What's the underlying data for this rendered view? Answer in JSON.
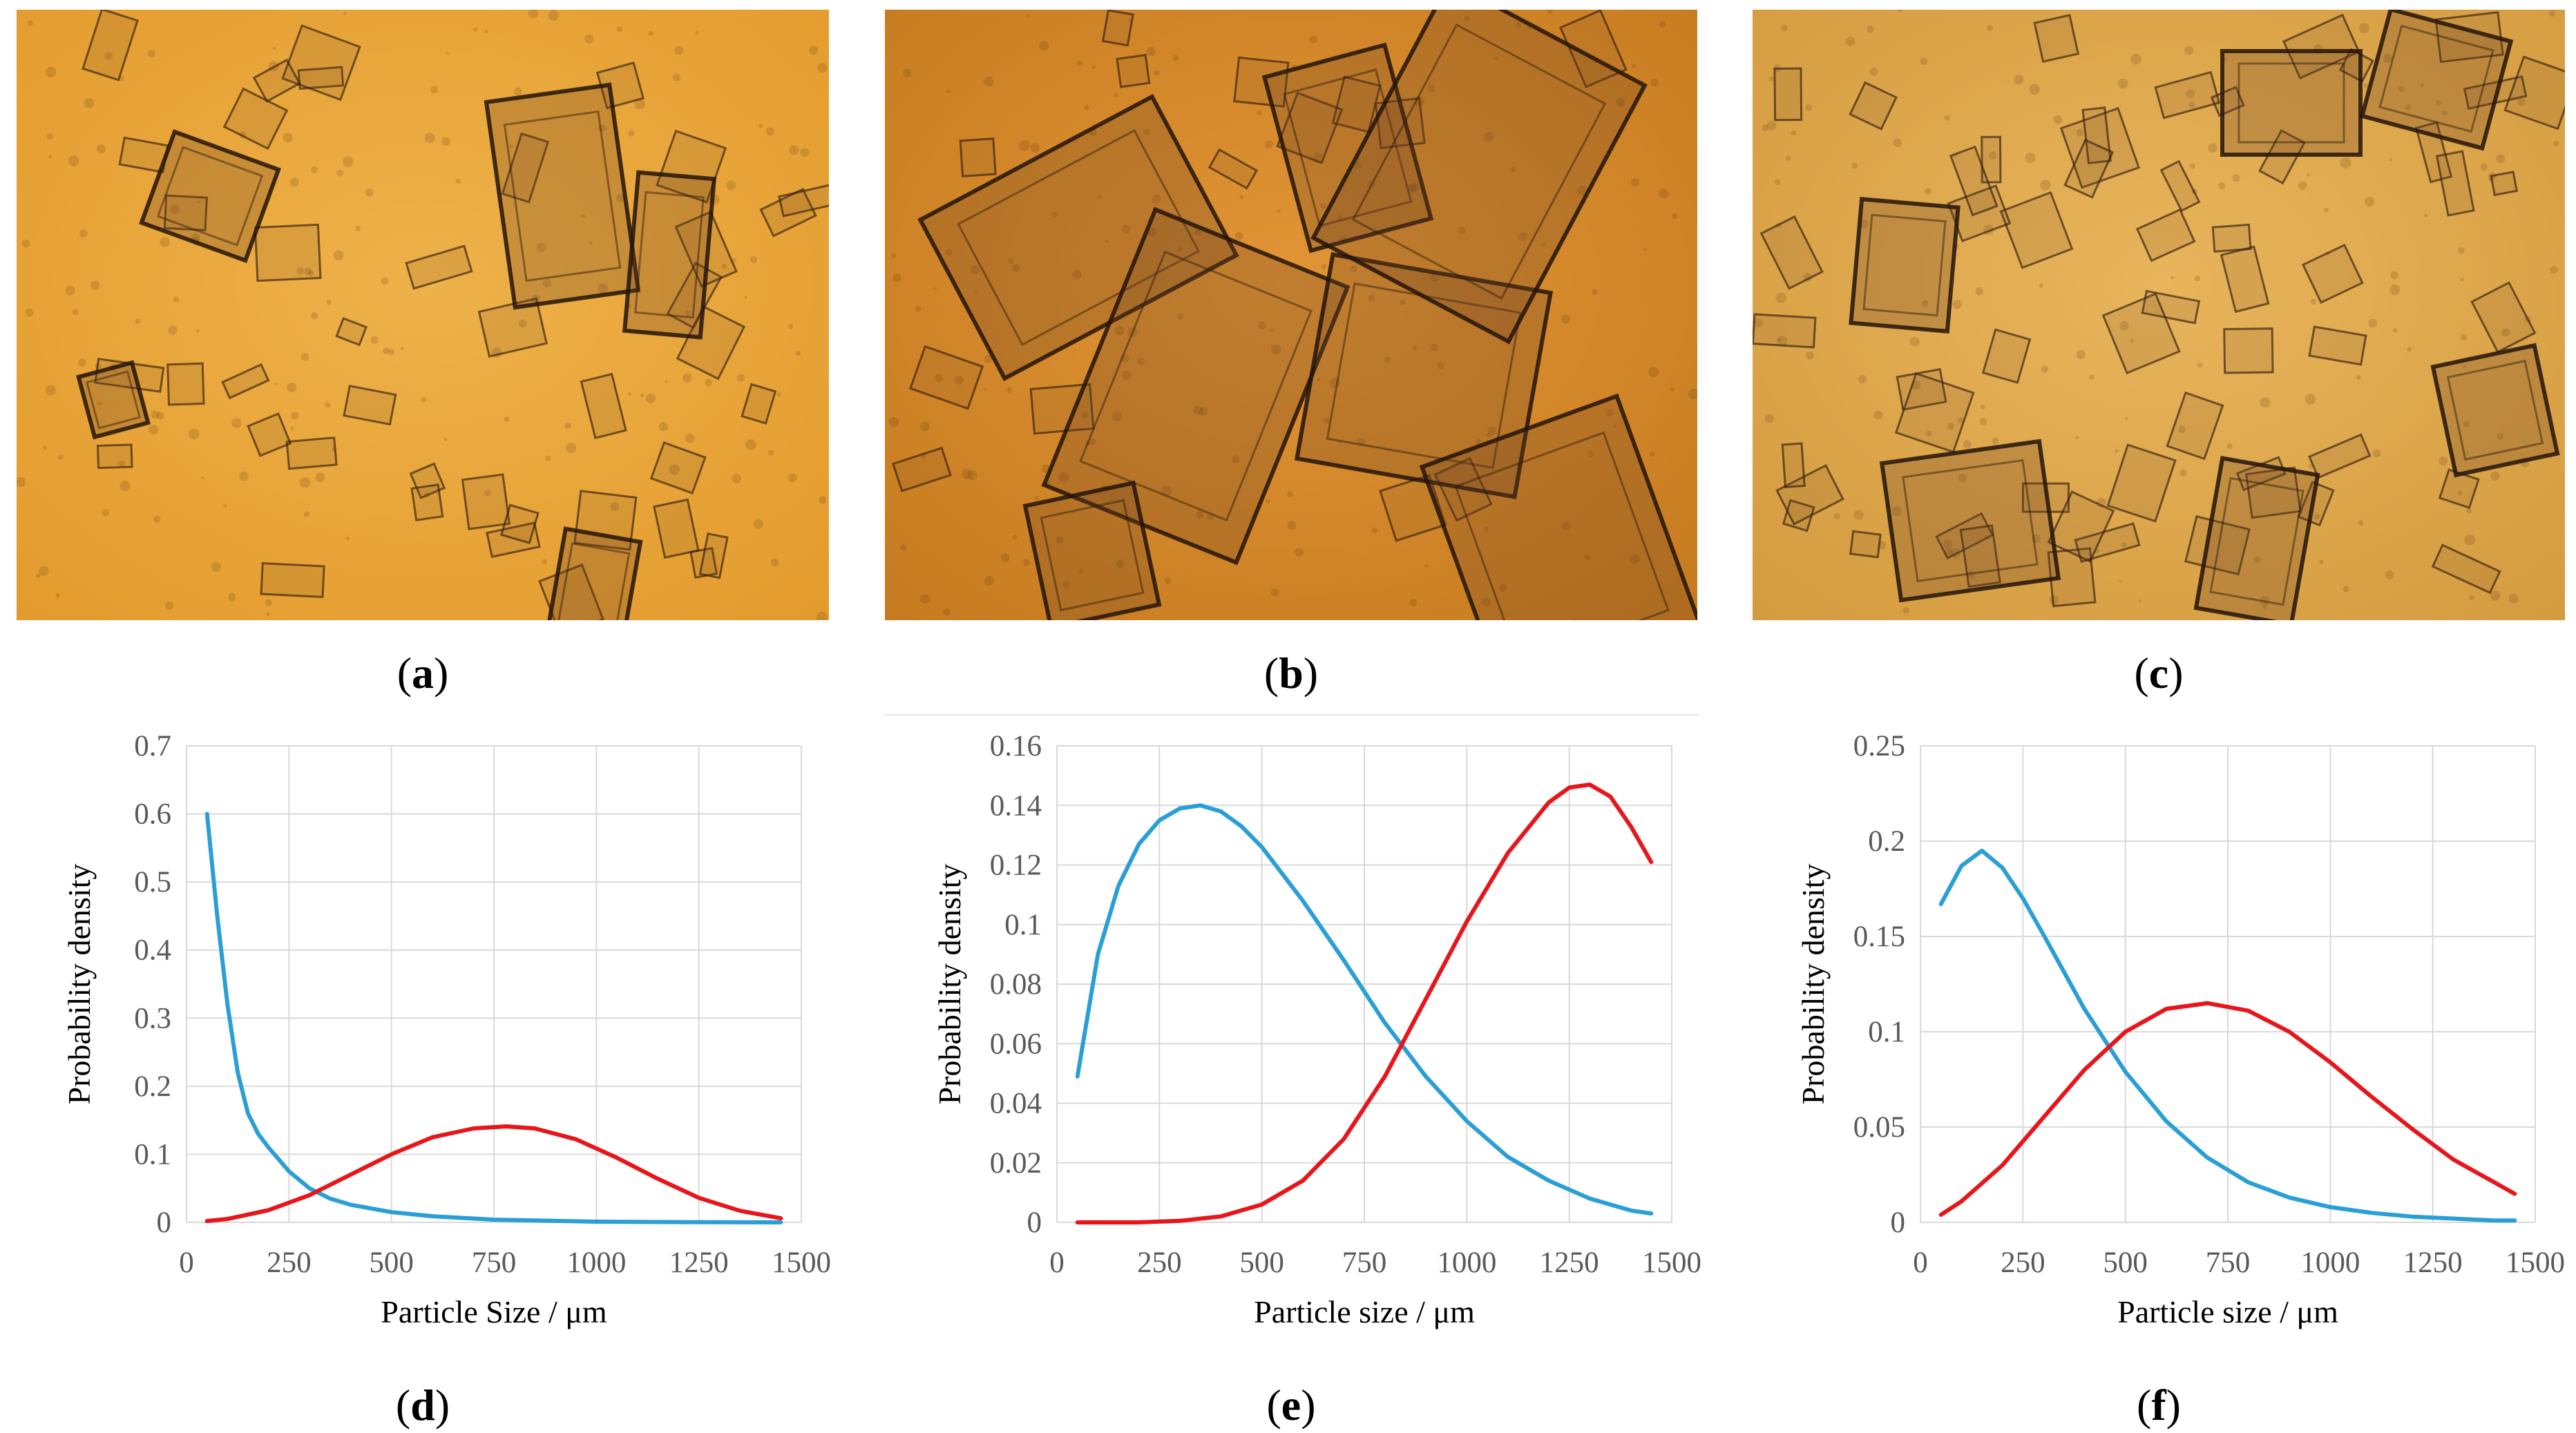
{
  "panels": [
    {
      "label": "a",
      "color_base": "#e39a2c",
      "color_light": "#eeb24a"
    },
    {
      "label": "b",
      "color_base": "#c57a1f",
      "color_light": "#e19535"
    },
    {
      "label": "c",
      "color_base": "#d49a3e",
      "color_light": "#e8b55c"
    }
  ],
  "chart_data": [
    {
      "type": "line",
      "panel": "d",
      "xlabel": "Particle Size / μm",
      "ylabel": "Probability density",
      "xlim": [
        0,
        1500
      ],
      "ylim": [
        0,
        0.7
      ],
      "xticks": [
        0,
        250,
        500,
        750,
        1000,
        1250,
        1500
      ],
      "yticks": [
        0,
        0.1,
        0.2,
        0.3,
        0.4,
        0.5,
        0.6,
        0.7
      ],
      "ytick_labels": [
        "0",
        "0.1",
        "0.2",
        "0.3",
        "0.4",
        "0.5",
        "0.6",
        "0.7"
      ],
      "grid": true,
      "series": [
        {
          "color": "#2a9fd6",
          "x": [
            50,
            75,
            100,
            125,
            150,
            175,
            200,
            250,
            300,
            350,
            400,
            500,
            600,
            750,
            1000,
            1250,
            1450
          ],
          "y": [
            0.6,
            0.45,
            0.32,
            0.22,
            0.16,
            0.13,
            0.11,
            0.075,
            0.05,
            0.035,
            0.026,
            0.015,
            0.009,
            0.004,
            0.001,
            0.0002,
            0
          ]
        },
        {
          "color": "#e8151b",
          "x": [
            50,
            100,
            200,
            300,
            400,
            500,
            600,
            700,
            780,
            850,
            950,
            1050,
            1150,
            1250,
            1350,
            1450
          ],
          "y": [
            0.002,
            0.005,
            0.018,
            0.04,
            0.07,
            0.1,
            0.125,
            0.138,
            0.141,
            0.138,
            0.122,
            0.095,
            0.064,
            0.036,
            0.017,
            0.006
          ]
        }
      ]
    },
    {
      "type": "line",
      "panel": "e",
      "xlabel": "Particle size / μm",
      "ylabel": "Probability density",
      "xlim": [
        0,
        1500
      ],
      "ylim": [
        0,
        0.16
      ],
      "xticks": [
        0,
        250,
        500,
        750,
        1000,
        1250,
        1500
      ],
      "yticks": [
        0,
        0.02,
        0.04,
        0.06,
        0.08,
        0.1,
        0.12,
        0.14,
        0.16
      ],
      "ytick_labels": [
        "0",
        "0.02",
        "0.04",
        "0.06",
        "0.08",
        "0.1",
        "0.12",
        "0.14",
        "0.16"
      ],
      "grid": true,
      "series": [
        {
          "color": "#2a9fd6",
          "x": [
            50,
            100,
            150,
            200,
            250,
            300,
            350,
            400,
            450,
            500,
            600,
            700,
            800,
            900,
            1000,
            1100,
            1200,
            1300,
            1400,
            1450
          ],
          "y": [
            0.049,
            0.09,
            0.113,
            0.127,
            0.135,
            0.139,
            0.14,
            0.138,
            0.133,
            0.126,
            0.108,
            0.088,
            0.067,
            0.049,
            0.034,
            0.022,
            0.014,
            0.008,
            0.004,
            0.003
          ]
        },
        {
          "color": "#e8151b",
          "x": [
            50,
            200,
            300,
            400,
            500,
            600,
            700,
            800,
            900,
            1000,
            1100,
            1200,
            1250,
            1300,
            1350,
            1400,
            1450
          ],
          "y": [
            0,
            0,
            0.0005,
            0.002,
            0.006,
            0.014,
            0.028,
            0.049,
            0.075,
            0.101,
            0.124,
            0.141,
            0.146,
            0.147,
            0.143,
            0.133,
            0.121
          ]
        }
      ]
    },
    {
      "type": "line",
      "panel": "f",
      "xlabel": "Particle size / μm",
      "ylabel": "Probability density",
      "xlim": [
        0,
        1500
      ],
      "ylim": [
        0,
        0.25
      ],
      "xticks": [
        0,
        250,
        500,
        750,
        1000,
        1250,
        1500
      ],
      "yticks": [
        0,
        0.05,
        0.1,
        0.15,
        0.2,
        0.25
      ],
      "ytick_labels": [
        "0",
        "0.05",
        "0.1",
        "0.15",
        "0.2",
        "0.25"
      ],
      "grid": true,
      "series": [
        {
          "color": "#2a9fd6",
          "x": [
            50,
            100,
            150,
            200,
            250,
            300,
            400,
            500,
            600,
            700,
            800,
            900,
            1000,
            1100,
            1200,
            1300,
            1400,
            1450
          ],
          "y": [
            0.167,
            0.187,
            0.195,
            0.186,
            0.17,
            0.151,
            0.112,
            0.079,
            0.053,
            0.034,
            0.021,
            0.013,
            0.008,
            0.005,
            0.003,
            0.002,
            0.001,
            0.001
          ]
        },
        {
          "color": "#e8151b",
          "x": [
            50,
            100,
            200,
            300,
            400,
            500,
            600,
            700,
            800,
            900,
            1000,
            1100,
            1200,
            1300,
            1400,
            1450
          ],
          "y": [
            0.004,
            0.011,
            0.03,
            0.055,
            0.08,
            0.1,
            0.112,
            0.115,
            0.111,
            0.1,
            0.084,
            0.066,
            0.049,
            0.033,
            0.021,
            0.015
          ]
        }
      ]
    }
  ],
  "chart_labels": [
    "d",
    "e",
    "f"
  ]
}
